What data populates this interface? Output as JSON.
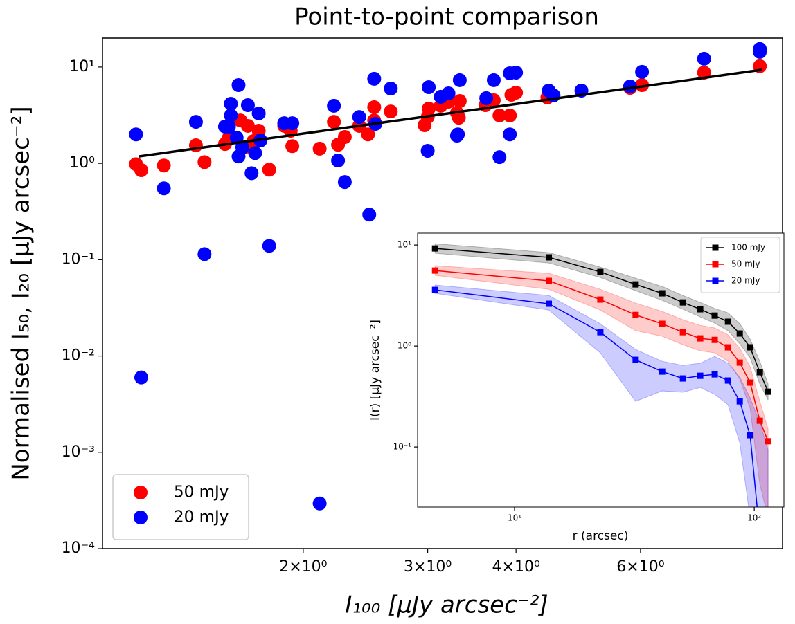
{
  "chart_data": [
    {
      "type": "scatter",
      "title": "Point-to-point comparison",
      "x_label": "I₁₀₀ [μJy arcsec⁻²]",
      "y_label": "Normalised I₅₀, I₂₀ [μJy arcsec⁻²]",
      "log_x": true,
      "log_y": true,
      "xlim": [
        1.04,
        9.53
      ],
      "ylim": [
        0.0001,
        20
      ],
      "xticks": [
        {
          "value": 2,
          "label": "2×10⁰"
        },
        {
          "value": 3,
          "label": "3×10⁰"
        },
        {
          "value": 4,
          "label": "4×10⁰"
        },
        {
          "value": 6,
          "label": "6×10⁰"
        }
      ],
      "yticks": [
        {
          "value": 0.0001,
          "label": "10⁻⁴"
        },
        {
          "value": 0.001,
          "label": "10⁻³"
        },
        {
          "value": 0.01,
          "label": "10⁻²"
        },
        {
          "value": 0.1,
          "label": "10⁻¹"
        },
        {
          "value": 1,
          "label": "10⁰"
        },
        {
          "value": 10,
          "label": "10¹"
        }
      ],
      "legend": "lower left",
      "fit": {
        "color": "#000000",
        "x": [
          1.17,
          8.91
        ],
        "y": [
          1.18,
          9.36
        ]
      },
      "series": [
        {
          "name": "50 mJy",
          "color": "#ff0000",
          "x": [
            1.16,
            1.18,
            1.27,
            1.41,
            1.45,
            1.55,
            1.57,
            1.63,
            1.66,
            1.67,
            1.7,
            1.73,
            1.79,
            1.88,
            1.92,
            1.93,
            2.11,
            2.21,
            2.24,
            2.29,
            2.4,
            2.47,
            2.52,
            2.52,
            2.66,
            2.97,
            3.0,
            3.01,
            3.13,
            3.21,
            3.3,
            3.32,
            3.33,
            3.62,
            3.72,
            3.79,
            3.92,
            3.94,
            4.0,
            4.43,
            5.8,
            6.03,
            7.38,
            8.85
          ],
          "values": [
            0.98,
            0.85,
            0.95,
            1.54,
            1.03,
            1.59,
            1.85,
            2.79,
            1.49,
            2.45,
            1.7,
            2.18,
            0.86,
            2.45,
            2.18,
            1.51,
            1.42,
            2.7,
            1.56,
            1.88,
            2.45,
            2.0,
            3.83,
            2.79,
            3.46,
            2.49,
            3.03,
            3.7,
            3.96,
            4.37,
            3.35,
            2.98,
            4.44,
            4.02,
            4.52,
            3.14,
            3.14,
            5.15,
            5.42,
            4.83,
            6.08,
            6.5,
            8.75,
            10.2
          ]
        },
        {
          "name": "20 mJy",
          "color": "#0000ff",
          "x": [
            1.16,
            1.18,
            1.27,
            1.41,
            1.45,
            1.55,
            1.57,
            1.58,
            1.58,
            1.61,
            1.62,
            1.62,
            1.64,
            1.67,
            1.69,
            1.71,
            1.73,
            1.74,
            1.79,
            1.88,
            1.93,
            2.11,
            2.21,
            2.24,
            2.29,
            2.4,
            2.48,
            2.52,
            2.53,
            2.66,
            3.0,
            3.01,
            3.13,
            3.21,
            3.3,
            3.31,
            3.33,
            3.63,
            3.72,
            3.79,
            3.92,
            3.92,
            4.0,
            4.45,
            4.52,
            4.95,
            5.8,
            6.03,
            7.38,
            8.85,
            8.85
          ],
          "values": [
            2.0,
            0.00598,
            0.55,
            2.7,
            0.114,
            2.41,
            2.41,
            4.16,
            3.14,
            1.85,
            1.18,
            6.5,
            1.46,
            4.02,
            0.79,
            1.28,
            3.3,
            1.73,
            0.139,
            2.61,
            2.61,
            0.000294,
            3.96,
            1.07,
            0.64,
            3.03,
            0.294,
            7.55,
            2.57,
            5.98,
            1.35,
            6.18,
            4.91,
            5.33,
            1.94,
            2.0,
            7.3,
            4.75,
            7.3,
            1.16,
            2.0,
            8.61,
            8.75,
            5.69,
            5.07,
            5.69,
            6.29,
            8.91,
            12.2,
            15.4,
            14.4
          ]
        }
      ]
    },
    {
      "type": "line",
      "x_label": "r (arcsec)",
      "y_label": "I(r) [μJy arcsec⁻²]",
      "log_x": true,
      "log_y": true,
      "xlim": [
        3.94,
        133
      ],
      "ylim": [
        0.0254,
        13.1
      ],
      "xticks": [
        {
          "value": 10,
          "label": "10¹"
        },
        {
          "value": 100,
          "label": "10²"
        }
      ],
      "yticks": [
        {
          "value": 0.1,
          "label": "10⁻¹"
        },
        {
          "value": 1,
          "label": "10⁰"
        },
        {
          "value": 10,
          "label": "10¹"
        }
      ],
      "legend": "upper right",
      "x": [
        4.66,
        13.9,
        22.8,
        32.0,
        41.3,
        50.4,
        59.5,
        68.4,
        77.7,
        87.0,
        96.1,
        105.5,
        114.2
      ],
      "series": [
        {
          "name": "100 mJy",
          "color": "#000000",
          "values": [
            9.24,
            7.54,
            5.41,
            4.07,
            3.32,
            2.7,
            2.31,
            2.0,
            1.74,
            1.33,
            0.97,
            0.55,
            0.353
          ],
          "upper": [
            10.3,
            8.41,
            6.04,
            4.69,
            3.88,
            3.16,
            2.7,
            2.35,
            2.13,
            1.66,
            1.17,
            0.706,
            0.42
          ],
          "lower": [
            8.28,
            6.64,
            4.76,
            3.53,
            2.83,
            2.31,
            1.94,
            1.68,
            1.42,
            1.05,
            0.766,
            0.42,
            0.292
          ]
        },
        {
          "name": "50 mJy",
          "color": "#ff0000",
          "values": [
            5.58,
            4.41,
            2.88,
            2.03,
            1.66,
            1.37,
            1.19,
            1.15,
            0.97,
            0.685,
            0.434,
            0.182,
            0.114
          ],
          "upper": [
            6.24,
            5.24,
            3.64,
            2.66,
            2.2,
            1.82,
            1.6,
            1.51,
            1.29,
            0.953,
            0.623,
            0.283,
            0.151
          ],
          "lower": [
            5.0,
            3.64,
            2.27,
            1.42,
            1.25,
            1.03,
            0.896,
            0.855,
            0.706,
            0.469,
            0.242,
            0.0427,
            0.02
          ]
        },
        {
          "name": "20 mJy",
          "color": "#0000ff",
          "values": [
            3.59,
            2.62,
            1.37,
            0.73,
            0.558,
            0.477,
            0.507,
            0.524,
            0.455,
            0.283,
            0.131,
            0,
            null
          ],
          "upper": [
            4.01,
            3.16,
            1.66,
            0.925,
            0.706,
            0.643,
            0.675,
            0.789,
            0.675,
            0.492,
            0.306,
            0.177,
            0.094
          ],
          "lower": [
            3.32,
            2.27,
            0.855,
            0.283,
            0.359,
            0.348,
            0.388,
            0.332,
            0.262,
            0.11,
            0.02,
            0.02,
            0.02
          ]
        }
      ]
    }
  ]
}
